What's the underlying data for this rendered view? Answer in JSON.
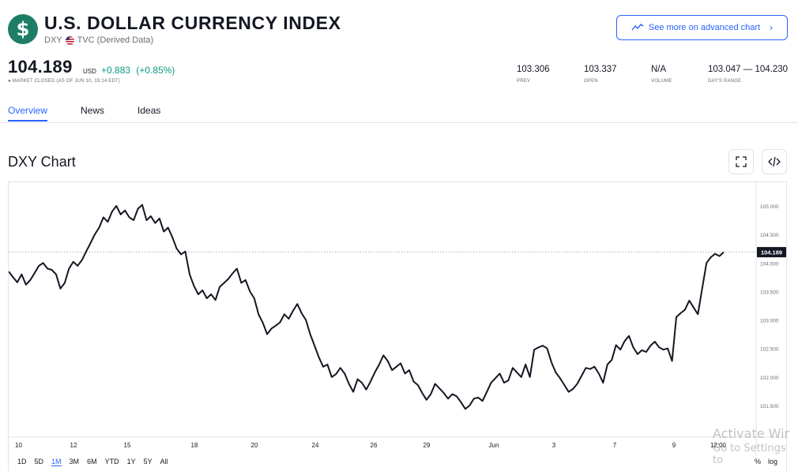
{
  "header": {
    "logo_glyph": "$",
    "title": "U.S. DOLLAR CURRENCY INDEX",
    "symbol": "DXY",
    "source": "TVC (Derived Data)",
    "advanced_chart_label": "See more on advanced chart",
    "advanced_chart_icon": "trend-line-icon"
  },
  "quote": {
    "price": "104.189",
    "currency": "USD",
    "change": "+0.883",
    "change_pct": "(+0.85%)",
    "status": "● MARKET CLOSED (AS OF JUN 10, 15:14 EDT)",
    "change_color": "#089981"
  },
  "stats": [
    {
      "value": "103.306",
      "label": "PREV"
    },
    {
      "value": "103.337",
      "label": "OPEN"
    },
    {
      "value": "N/A",
      "label": "VOLUME"
    },
    {
      "value": "103.047 — 104.230",
      "label": "DAY'S RANGE"
    }
  ],
  "tabs": [
    {
      "label": "Overview",
      "active": true
    },
    {
      "label": "News",
      "active": false
    },
    {
      "label": "Ideas",
      "active": false
    }
  ],
  "chart_section": {
    "heading": "DXY Chart",
    "fullscreen_icon": "fullscreen-icon",
    "embed_icon": "embed-code-icon"
  },
  "chart_data": {
    "type": "line",
    "title": "",
    "xlabel": "",
    "ylabel": "",
    "ylim": [
      101.3,
      105.3
    ],
    "y_ticks": [
      "105.000",
      "104.500",
      "104.000",
      "103.500",
      "103.000",
      "102.500",
      "102.000",
      "101.500"
    ],
    "x_ticks": [
      "10",
      "12",
      "15",
      "18",
      "20",
      "24",
      "26",
      "29",
      "Jun",
      "3",
      "7",
      "9",
      "12:00"
    ],
    "last_value_label": "104.189",
    "last_value": 104.189,
    "line_color": "#131722",
    "grid": false,
    "series": [
      {
        "values": [
          103.85,
          103.75,
          103.66,
          103.8,
          103.62,
          103.7,
          103.82,
          103.95,
          104.0,
          103.9,
          103.88,
          103.8,
          103.55,
          103.65,
          103.9,
          104.02,
          103.95,
          104.05,
          104.2,
          104.35,
          104.5,
          104.62,
          104.8,
          104.72,
          104.9,
          105.0,
          104.85,
          104.92,
          104.8,
          104.75,
          104.95,
          105.02,
          104.75,
          104.82,
          104.7,
          104.78,
          104.55,
          104.62,
          104.45,
          104.25,
          104.15,
          104.2,
          103.8,
          103.6,
          103.45,
          103.52,
          103.38,
          103.45,
          103.35,
          103.58,
          103.65,
          103.72,
          103.82,
          103.9,
          103.65,
          103.7,
          103.5,
          103.38,
          103.1,
          102.95,
          102.75,
          102.85,
          102.9,
          102.96,
          103.1,
          103.02,
          103.16,
          103.28,
          103.12,
          103.0,
          102.75,
          102.55,
          102.35,
          102.18,
          102.22,
          102.0,
          102.05,
          102.16,
          102.06,
          101.88,
          101.74,
          101.96,
          101.9,
          101.78,
          101.92,
          102.08,
          102.22,
          102.38,
          102.28,
          102.12,
          102.18,
          102.24,
          102.06,
          102.12,
          101.92,
          101.86,
          101.72,
          101.6,
          101.7,
          101.88,
          101.8,
          101.72,
          101.62,
          101.7,
          101.66,
          101.56,
          101.44,
          101.5,
          101.62,
          101.64,
          101.58,
          101.74,
          101.9,
          101.98,
          102.06,
          101.9,
          101.94,
          102.16,
          102.08,
          102.0,
          102.22,
          102.0,
          102.48,
          102.52,
          102.55,
          102.5,
          102.26,
          102.08,
          101.98,
          101.86,
          101.74,
          101.79,
          101.88,
          102.02,
          102.16,
          102.14,
          102.18,
          102.06,
          101.9,
          102.22,
          102.3,
          102.56,
          102.48,
          102.63,
          102.72,
          102.52,
          102.4,
          102.47,
          102.44,
          102.55,
          102.62,
          102.52,
          102.48,
          102.5,
          102.28,
          103.05,
          103.12,
          103.18,
          103.34,
          103.22,
          103.1,
          103.55,
          104.0,
          104.1,
          104.16,
          104.12,
          104.19
        ]
      }
    ]
  },
  "range_buttons": [
    {
      "label": "1D",
      "active": false
    },
    {
      "label": "5D",
      "active": false
    },
    {
      "label": "1M",
      "active": true
    },
    {
      "label": "3M",
      "active": false
    },
    {
      "label": "6M",
      "active": false
    },
    {
      "label": "YTD",
      "active": false
    },
    {
      "label": "1Y",
      "active": false
    },
    {
      "label": "5Y",
      "active": false
    },
    {
      "label": "All",
      "active": false
    }
  ],
  "scale_options": [
    "%",
    "log"
  ],
  "watermark": {
    "line1": "Activate Wir",
    "line2": "Go to Settings to"
  }
}
